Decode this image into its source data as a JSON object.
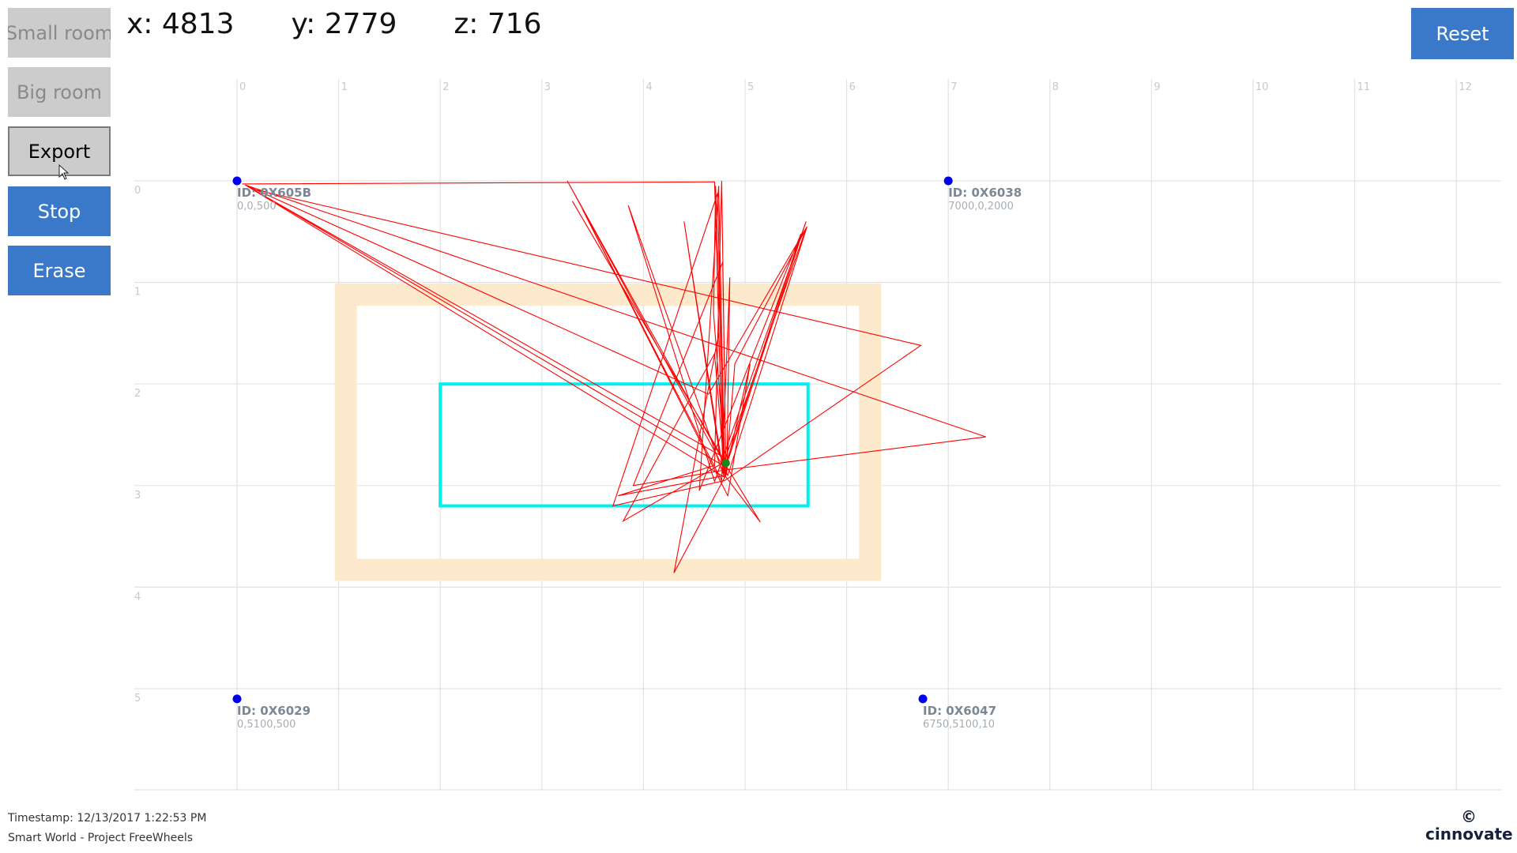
{
  "buttons": {
    "small_room": "Small room",
    "big_room": "Big room",
    "export": "Export",
    "stop": "Stop",
    "erase": "Erase",
    "reset": "Reset"
  },
  "position": {
    "x": "x: 4813",
    "y": "y: 2779",
    "z": "z: 716"
  },
  "grid": {
    "x_ticks": [
      "0",
      "1",
      "2",
      "3",
      "4",
      "5",
      "6",
      "7",
      "8",
      "9",
      "10",
      "11",
      "12"
    ],
    "y_ticks": [
      "0",
      "1",
      "2",
      "3",
      "4",
      "5"
    ]
  },
  "anchors": [
    {
      "id": "ID: 0X605B",
      "coords": "0,0,500",
      "x_m": 0,
      "y_m": 0
    },
    {
      "id": "ID: 0X6038",
      "coords": "7000,0,2000",
      "x_m": 7.0,
      "y_m": 0
    },
    {
      "id": "ID: 0X6029",
      "coords": "0,5100,500",
      "x_m": 0,
      "y_m": 5.1
    },
    {
      "id": "ID: 0X6047",
      "coords": "6750,5100,10",
      "x_m": 6.75,
      "y_m": 5.1
    }
  ],
  "zones": {
    "outer": {
      "x1": 1.07,
      "y1": 1.12,
      "x2": 6.23,
      "y2": 3.83,
      "color": "#fde9cc"
    },
    "inner": {
      "x1": 2.0,
      "y1": 2.0,
      "x2": 5.62,
      "y2": 3.2,
      "color": "#00f0f0"
    }
  },
  "current_position_m": {
    "x": 4.813,
    "y": 2.779
  },
  "track_color": "#ff0000",
  "track_points_m": [
    [
      0.05,
      0.03
    ],
    [
      4.7,
      0.01
    ],
    [
      4.78,
      2.8
    ],
    [
      0.1,
      0.05
    ],
    [
      4.64,
      2.1
    ],
    [
      5.61,
      0.45
    ],
    [
      4.83,
      2.9
    ],
    [
      3.25,
      0.0
    ],
    [
      4.75,
      2.7
    ],
    [
      0.15,
      0.08
    ],
    [
      6.73,
      1.62
    ],
    [
      4.8,
      2.95
    ],
    [
      3.7,
      3.2
    ],
    [
      4.73,
      0.12
    ],
    [
      4.79,
      2.85
    ],
    [
      5.55,
      0.52
    ],
    [
      4.55,
      3.05
    ],
    [
      4.74,
      0.05
    ],
    [
      4.8,
      2.92
    ],
    [
      0.08,
      0.04
    ],
    [
      7.37,
      2.52
    ],
    [
      4.78,
      2.85
    ],
    [
      3.9,
      3.0
    ],
    [
      4.78,
      0.8
    ],
    [
      4.81,
      2.76
    ],
    [
      3.8,
      3.35
    ],
    [
      4.7,
      1.7
    ],
    [
      4.8,
      2.9
    ],
    [
      5.05,
      1.8
    ],
    [
      4.83,
      3.1
    ],
    [
      3.4,
      0.28
    ],
    [
      4.77,
      2.95
    ],
    [
      4.85,
      0.95
    ],
    [
      4.82,
      2.88
    ],
    [
      4.3,
      3.86
    ],
    [
      4.74,
      1.5
    ],
    [
      4.79,
      2.88
    ],
    [
      5.6,
      0.4
    ],
    [
      4.7,
      2.96
    ],
    [
      3.85,
      0.24
    ],
    [
      4.79,
      2.9
    ],
    [
      4.4,
      0.4
    ],
    [
      4.75,
      2.7
    ],
    [
      5.15,
      3.36
    ],
    [
      4.8,
      2.9
    ],
    [
      4.71,
      0.05
    ],
    [
      4.69,
      1.3
    ],
    [
      4.8,
      2.75
    ],
    [
      5.6,
      0.47
    ],
    [
      4.9,
      1.8
    ],
    [
      4.81,
      2.9
    ],
    [
      3.75,
      3.1
    ],
    [
      4.7,
      2.8
    ],
    [
      4.77,
      0.0
    ],
    [
      4.81,
      2.78
    ],
    [
      3.3,
      0.2
    ],
    [
      4.81,
      2.78
    ]
  ]
}
